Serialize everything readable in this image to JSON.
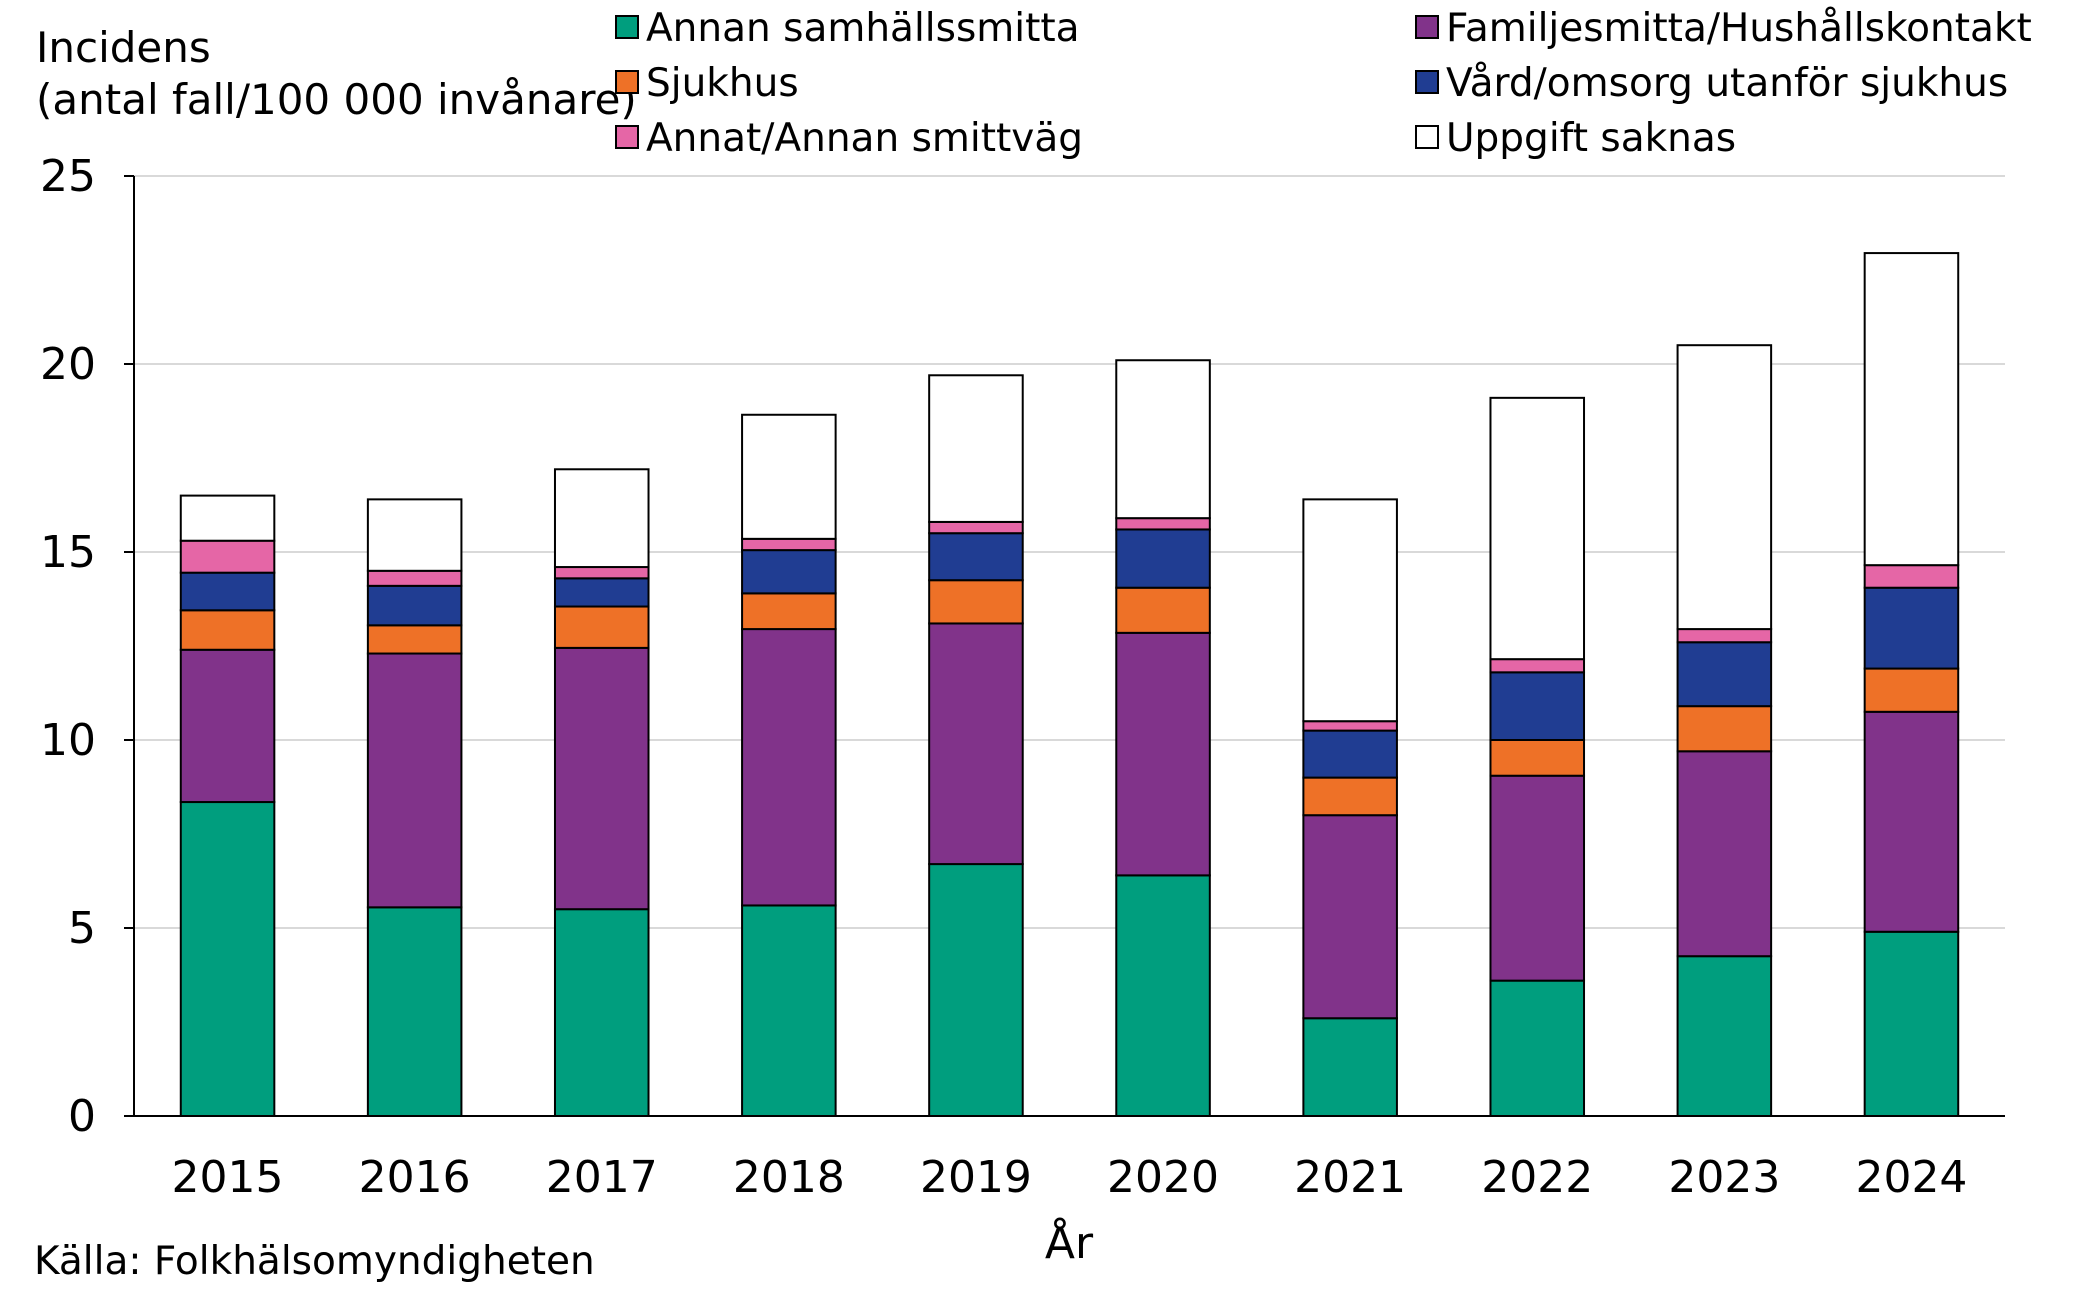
{
  "chart_data": {
    "type": "bar",
    "stacked": true,
    "title": "",
    "ylabel_lines": [
      "Incidens",
      "(antal fall/100 000 invånare)"
    ],
    "xlabel": "År",
    "source": "Källa: Folkhälsomyndigheten",
    "ylim": [
      0,
      25
    ],
    "yticks": [
      "0",
      "5",
      "10",
      "15",
      "20",
      "25"
    ],
    "ytick_values": [
      0,
      5,
      10,
      15,
      20,
      25
    ],
    "grid": true,
    "legend_position": "top",
    "categories": [
      "2015",
      "2016",
      "2017",
      "2018",
      "2019",
      "2020",
      "2021",
      "2022",
      "2023",
      "2024"
    ],
    "series": [
      {
        "name": "Annan samhällssmitta",
        "color": "#009E7E",
        "values": [
          8.35,
          5.55,
          5.5,
          5.6,
          6.7,
          6.4,
          2.6,
          3.6,
          4.25,
          4.9
        ]
      },
      {
        "name": "Familjesmitta/Hushållskontakt",
        "color": "#81338A",
        "values": [
          4.05,
          6.75,
          6.95,
          7.35,
          6.4,
          6.45,
          5.4,
          5.45,
          5.45,
          5.85
        ]
      },
      {
        "name": "Sjukhus",
        "color": "#EE7127",
        "values": [
          1.05,
          0.75,
          1.1,
          0.95,
          1.15,
          1.2,
          1.0,
          0.95,
          1.2,
          1.15
        ]
      },
      {
        "name": "Vård/omsorg utanför sjukhus",
        "color": "#203D92",
        "values": [
          1.0,
          1.05,
          0.75,
          1.15,
          1.25,
          1.55,
          1.25,
          1.8,
          1.7,
          2.15
        ]
      },
      {
        "name": "Annat/Annan smittväg",
        "color": "#E566A6",
        "values": [
          0.85,
          0.4,
          0.3,
          0.3,
          0.3,
          0.3,
          0.25,
          0.35,
          0.35,
          0.6
        ]
      },
      {
        "name": "Uppgift saknas",
        "color": "#FFFFFF",
        "values": [
          1.2,
          1.9,
          2.6,
          3.3,
          3.9,
          4.2,
          5.9,
          6.95,
          7.55,
          8.3
        ]
      }
    ]
  }
}
